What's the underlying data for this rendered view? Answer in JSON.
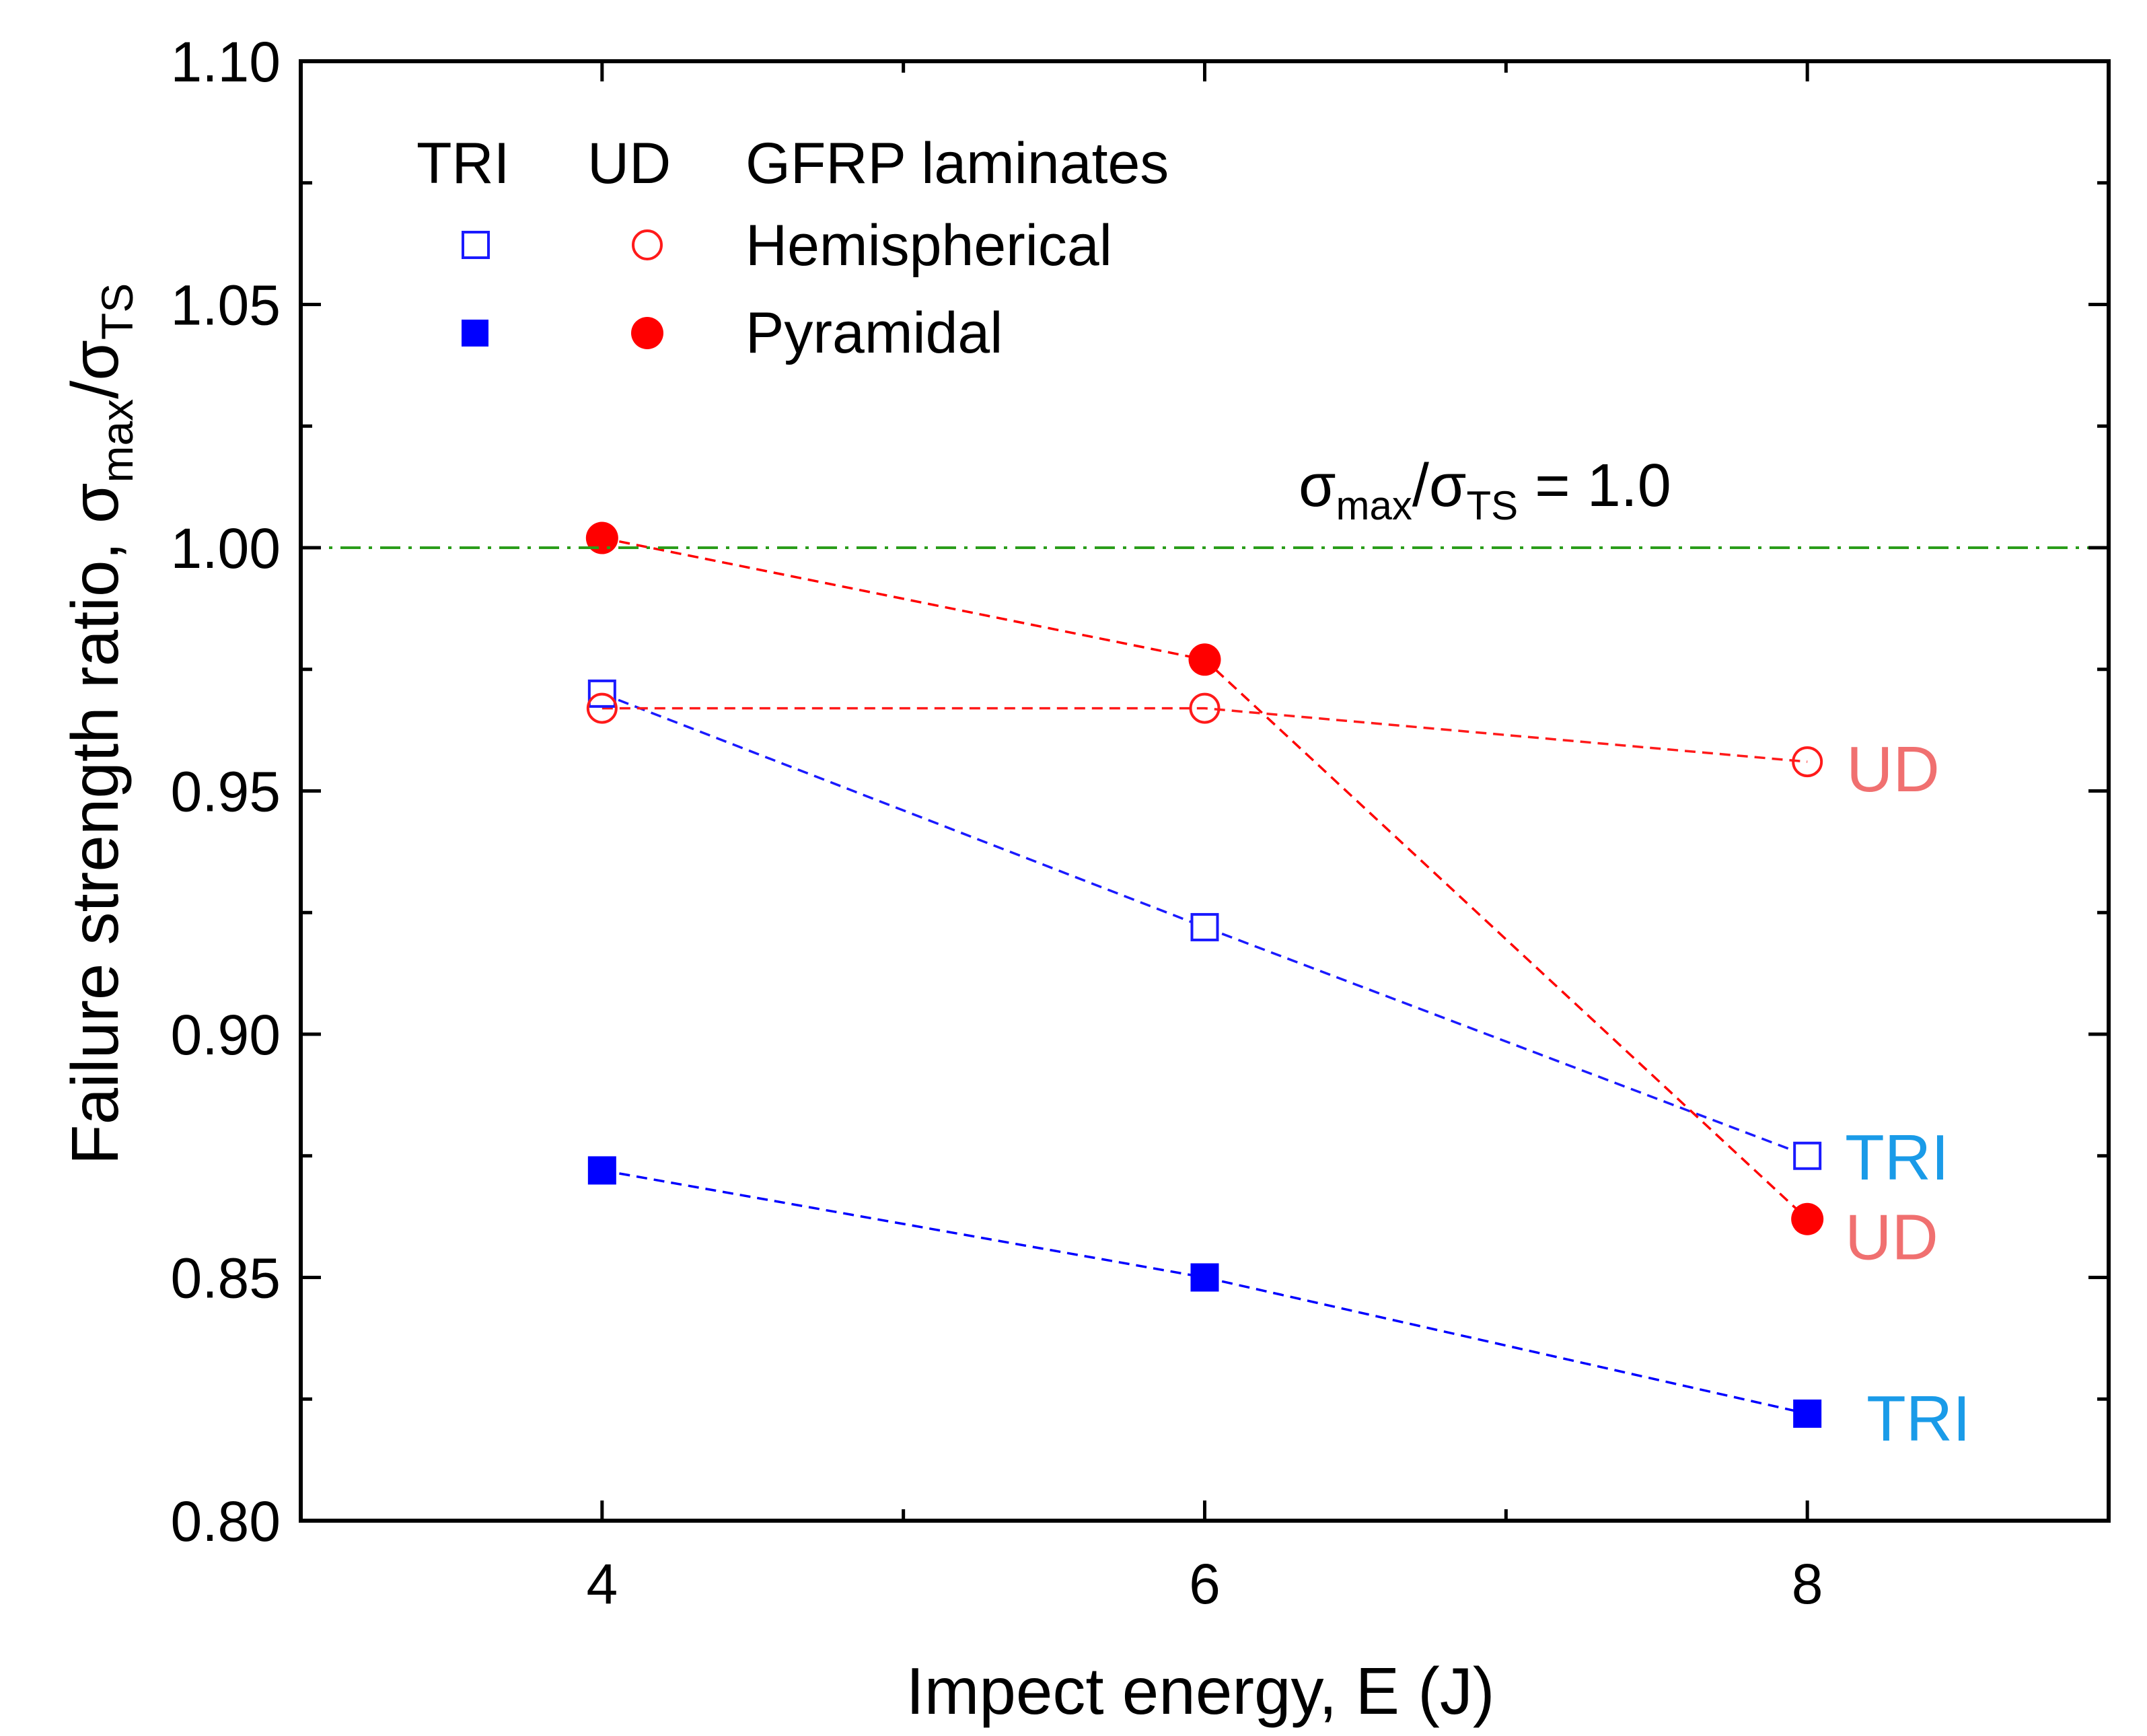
{
  "chart_data": {
    "type": "scatter",
    "title": "",
    "xlabel": "Impect energy, E (J)",
    "ylabel": {
      "prefix": "Failure strength ratio, ",
      "sigma": "σ",
      "num_sub": "max",
      "slash": "/",
      "den_sub": "TS"
    },
    "xlim": [
      3,
      9
    ],
    "ylim": [
      0.8,
      1.1
    ],
    "x_ticks": [
      4,
      6,
      8
    ],
    "x_tick_labels": [
      "4",
      "6",
      "8"
    ],
    "y_ticks": [
      0.8,
      0.85,
      0.9,
      0.95,
      1.0,
      1.05,
      1.1
    ],
    "y_tick_labels": [
      "0.80",
      "0.85",
      "0.90",
      "0.95",
      "1.00",
      "1.05",
      "1.10"
    ],
    "grid": false,
    "series": [
      {
        "name": "TRI Hemispherical",
        "laminate": "TRI",
        "impactor": "Hemispherical",
        "marker": "square",
        "filled": false,
        "color": "#1a1aff",
        "x": [
          4,
          6,
          8
        ],
        "y": [
          0.97,
          0.922,
          0.875
        ],
        "end_label": "TRI"
      },
      {
        "name": "TRI Pyramidal",
        "laminate": "TRI",
        "impactor": "Pyramidal",
        "marker": "square",
        "filled": true,
        "color": "#0000ff",
        "x": [
          4,
          6,
          8
        ],
        "y": [
          0.872,
          0.85,
          0.822
        ],
        "end_label": "TRI"
      },
      {
        "name": "UD Hemispherical",
        "laminate": "UD",
        "impactor": "Hemispherical",
        "marker": "circle",
        "filled": false,
        "color": "#ff1a1a",
        "x": [
          4,
          6,
          8
        ],
        "y": [
          0.967,
          0.967,
          0.956
        ],
        "end_label": "UD"
      },
      {
        "name": "UD Pyramidal",
        "laminate": "UD",
        "impactor": "Pyramidal",
        "marker": "circle",
        "filled": true,
        "color": "#ff0000",
        "x": [
          4,
          6,
          8
        ],
        "y": [
          1.002,
          0.977,
          0.862
        ],
        "end_label": "UD"
      }
    ],
    "reference_line": {
      "y": 1.0,
      "color": "#2a9d1a",
      "style": "dash-dot",
      "label": {
        "sigma": "σ",
        "num_sub": "max",
        "slash": "/",
        "den_sub": "TS",
        "value": " = 1.0"
      }
    },
    "legend": {
      "placement": "top-left",
      "col_tri": "TRI",
      "col_ud": "UD",
      "title": "GFRP laminates",
      "rows": [
        "Hemispherical",
        "Pyramidal"
      ]
    },
    "end_label_colors": {
      "TRI": "#1a9be8",
      "UD": "#f07070"
    }
  }
}
